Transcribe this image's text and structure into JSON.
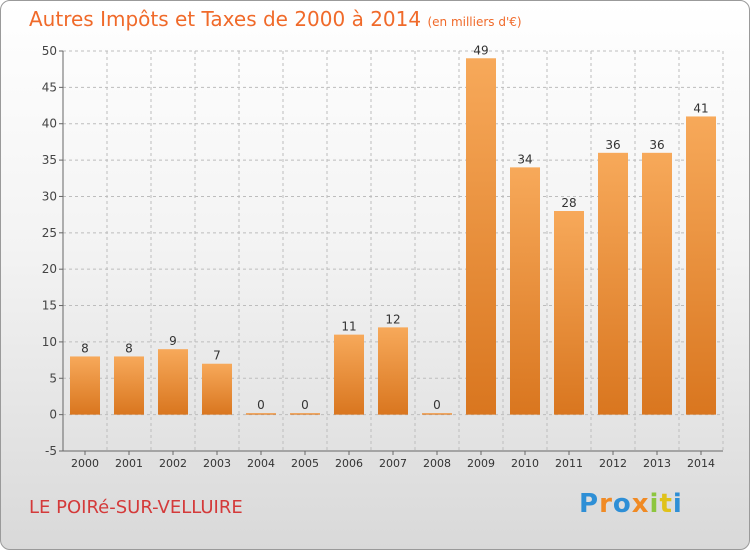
{
  "header": {
    "title": "Autres Impôts et Taxes de 2000 à 2014",
    "unit": "(en milliers d'€)"
  },
  "footer": {
    "commune": "LE POIRé-SUR-VELLUIRE",
    "logo_text": "Proxiti"
  },
  "colors": {
    "title": "#f06a2a",
    "commune": "#d43a3a",
    "bar_light": "#f7a95a",
    "bar_dark": "#d9761f",
    "grid": "#bdbdbd",
    "logo_letters": [
      "#2e8fd6",
      "#f08a24",
      "#2e8fd6",
      "#f08a24",
      "#8dc63f",
      "#e0c21a",
      "#2e8fd6"
    ]
  },
  "chart_data": {
    "type": "bar",
    "title": "Autres Impôts et Taxes de 2000 à 2014",
    "subtitle": "(en milliers d'€)",
    "xlabel": "",
    "ylabel": "",
    "categories": [
      "2000",
      "2001",
      "2002",
      "2003",
      "2004",
      "2005",
      "2006",
      "2007",
      "2008",
      "2009",
      "2010",
      "2011",
      "2012",
      "2013",
      "2014"
    ],
    "values": [
      8,
      8,
      9,
      7,
      0,
      0,
      11,
      12,
      0,
      49,
      34,
      28,
      36,
      36,
      41
    ],
    "data_labels": [
      "8",
      "8",
      "9",
      "7",
      "0",
      "0",
      "11",
      "12",
      "0",
      "49",
      "34",
      "28",
      "36",
      "36",
      "41"
    ],
    "ylim": [
      -5,
      50
    ],
    "yticks": [
      -5,
      0,
      5,
      10,
      15,
      20,
      25,
      30,
      35,
      40,
      45,
      50
    ],
    "grid": true,
    "legend": "none"
  }
}
